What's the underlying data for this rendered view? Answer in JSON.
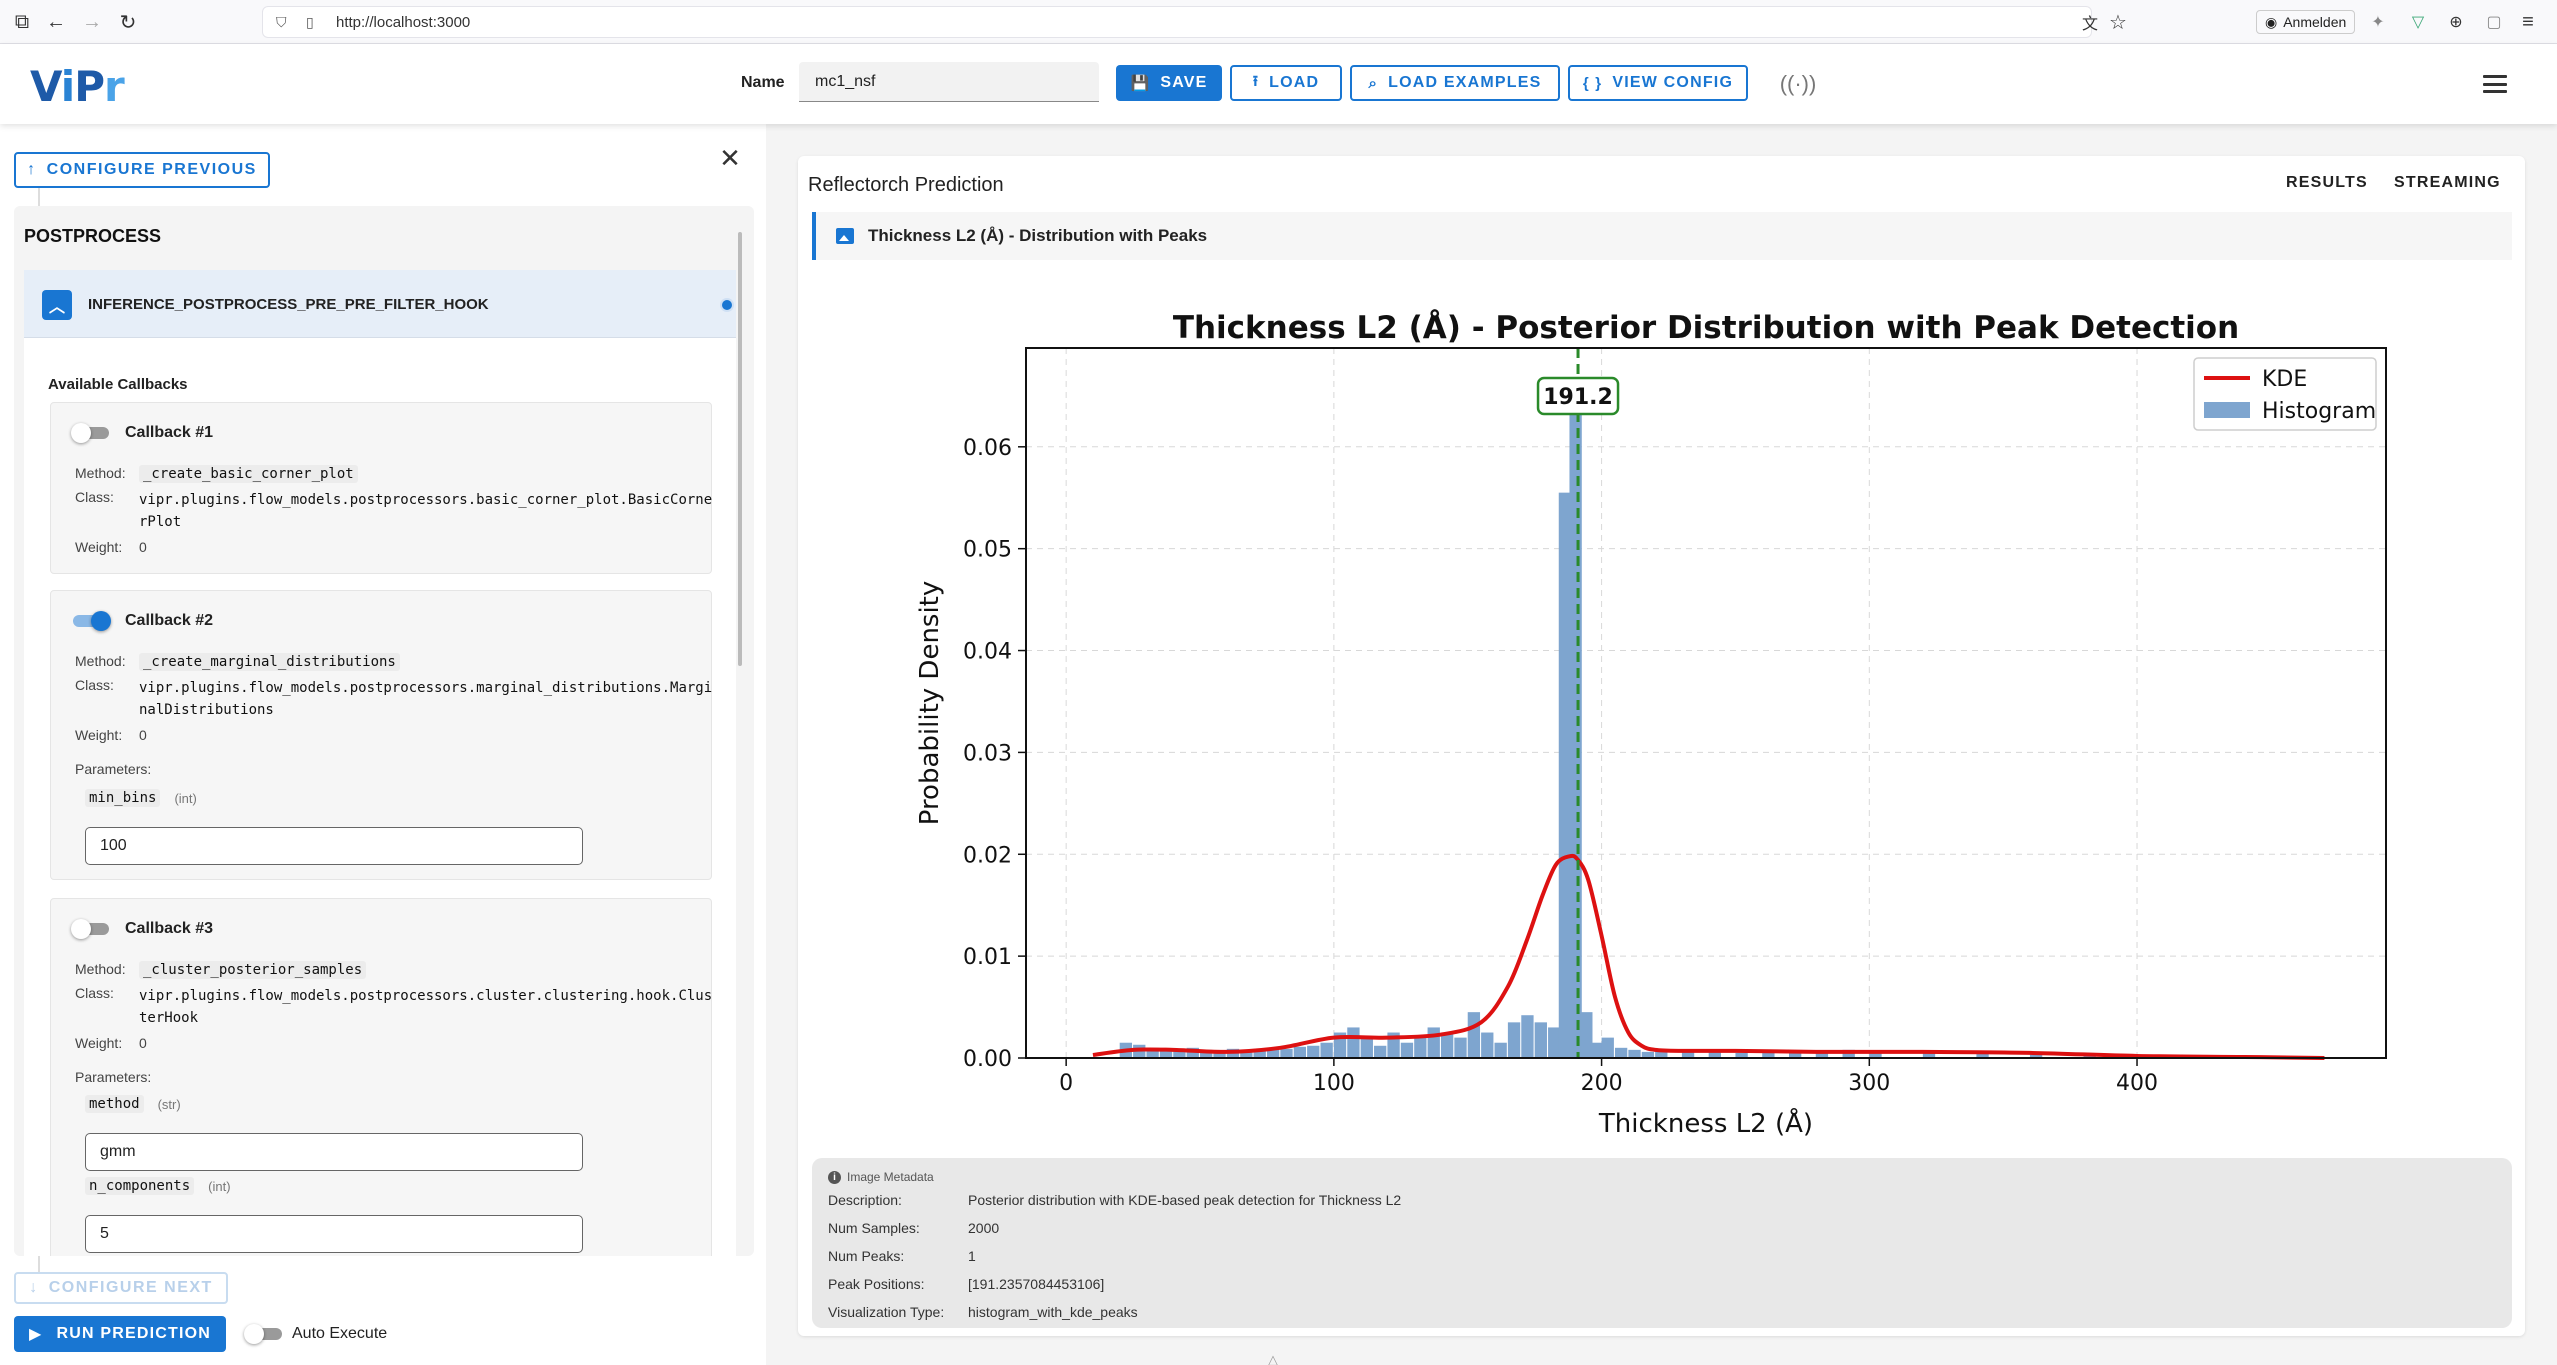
{
  "browser": {
    "url": "http://localhost:3000",
    "signin_label": "Anmelden"
  },
  "header": {
    "name_label": "Name",
    "name_value": "mc1_nsf",
    "buttons": {
      "save": "SAVE",
      "load": "LOAD",
      "load_examples": "LOAD EXAMPLES",
      "view_config": "VIEW CONFIG"
    }
  },
  "left": {
    "configure_previous": "CONFIGURE PREVIOUS",
    "section_title": "POSTPROCESS",
    "hook_name": "INFERENCE_POSTPROCESS_PRE_PRE_FILTER_HOOK",
    "available_callbacks": "Available Callbacks",
    "labels": {
      "method": "Method:",
      "class": "Class:",
      "weight": "Weight:",
      "parameters": "Parameters:"
    },
    "callbacks": [
      {
        "title": "Callback #1",
        "enabled": false,
        "method": "_create_basic_corner_plot",
        "class": "vipr.plugins.flow_models.postprocessors.basic_corner_plot.BasicCornerPlot",
        "weight": "0"
      },
      {
        "title": "Callback #2",
        "enabled": true,
        "method": "_create_marginal_distributions",
        "class": "vipr.plugins.flow_models.postprocessors.marginal_distributions.MarginalDistributions",
        "weight": "0",
        "params": [
          {
            "name": "min_bins",
            "type": "(int)",
            "value": "100"
          }
        ]
      },
      {
        "title": "Callback #3",
        "enabled": false,
        "method": "_cluster_posterior_samples",
        "class": "vipr.plugins.flow_models.postprocessors.cluster.clustering.hook.ClusterHook",
        "weight": "0",
        "params": [
          {
            "name": "method",
            "type": "(str)",
            "value": "gmm"
          },
          {
            "name": "n_components",
            "type": "(int)",
            "value": "5"
          }
        ]
      }
    ],
    "configure_next": "CONFIGURE NEXT",
    "run_prediction": "RUN PREDICTION",
    "auto_execute": "Auto Execute"
  },
  "right": {
    "title": "Reflectorch Prediction",
    "tabs": {
      "results": "RESULTS",
      "streaming": "STREAMING"
    },
    "image_title": "Thickness L2 (Å) - Distribution with Peaks",
    "metadata": {
      "header": "Image Metadata",
      "rows": [
        {
          "key": "Description:",
          "value": "Posterior distribution with KDE-based peak detection for Thickness L2"
        },
        {
          "key": "Num Samples:",
          "value": "2000"
        },
        {
          "key": "Num Peaks:",
          "value": "1"
        },
        {
          "key": "Peak Positions:",
          "value": "[191.2357084453106]"
        },
        {
          "key": "Visualization Type:",
          "value": "histogram_with_kde_peaks"
        }
      ]
    }
  },
  "chart_data": {
    "type": "bar",
    "title": "Thickness L2 (Å) - Posterior Distribution with Peak Detection",
    "xlabel": "Thickness L2 (Å)",
    "ylabel": "Probability Density",
    "xlim": [
      -15,
      493
    ],
    "ylim": [
      0,
      0.0697
    ],
    "x_ticks": [
      0,
      100,
      200,
      300,
      400
    ],
    "y_ticks": [
      0.0,
      0.01,
      0.02,
      0.03,
      0.04,
      0.05,
      0.06
    ],
    "y_tick_labels": [
      "0.00",
      "0.01",
      "0.02",
      "0.03",
      "0.04",
      "0.05",
      "0.06"
    ],
    "grid": true,
    "legend": "top-right",
    "series": [
      {
        "name": "KDE",
        "kind": "line",
        "color": "#dd1111",
        "x": [
          10,
          25,
          40,
          60,
          80,
          100,
          120,
          140,
          155,
          165,
          172,
          178,
          183,
          188,
          191,
          195,
          200,
          205,
          210,
          215,
          220,
          230,
          250,
          280,
          320,
          360,
          400,
          440,
          470
        ],
        "y": [
          0.0003,
          0.0008,
          0.0008,
          0.0006,
          0.001,
          0.002,
          0.002,
          0.0023,
          0.0035,
          0.007,
          0.0115,
          0.016,
          0.019,
          0.0198,
          0.0195,
          0.0175,
          0.012,
          0.006,
          0.0025,
          0.0012,
          0.0008,
          0.0007,
          0.0007,
          0.0006,
          0.0006,
          0.0005,
          0.0002,
          0.0001,
          0.0
        ]
      },
      {
        "name": "Histogram",
        "kind": "bar",
        "color": "#7ea5cf",
        "bin_width": 4.6,
        "bin_start": [
          20,
          25,
          30,
          35,
          40,
          45,
          50,
          55,
          60,
          65,
          70,
          75,
          80,
          85,
          90,
          95,
          100,
          105,
          110,
          115,
          120,
          125,
          130,
          135,
          140,
          145,
          150,
          155,
          160,
          165,
          170,
          175,
          180,
          184,
          188,
          192,
          196,
          200,
          205,
          210,
          215,
          220,
          230,
          240,
          250,
          260,
          270,
          280,
          290,
          300,
          320,
          340,
          360,
          380,
          400,
          430,
          460
        ],
        "values": [
          0.0015,
          0.0013,
          0.001,
          0.0008,
          0.0007,
          0.001,
          0.0008,
          0.0006,
          0.0009,
          0.0007,
          0.0008,
          0.001,
          0.0009,
          0.0011,
          0.0012,
          0.0015,
          0.0025,
          0.003,
          0.002,
          0.0012,
          0.0025,
          0.0015,
          0.002,
          0.003,
          0.0025,
          0.002,
          0.0045,
          0.0025,
          0.0015,
          0.0035,
          0.0042,
          0.0035,
          0.003,
          0.0555,
          0.065,
          0.0045,
          0.0015,
          0.002,
          0.001,
          0.0008,
          0.0006,
          0.0008,
          0.0007,
          0.0006,
          0.0005,
          0.0005,
          0.0006,
          0.0005,
          0.0008,
          0.0006,
          0.0005,
          0.0007,
          0.0004,
          0.0004,
          0.0003,
          0.0002,
          0.0001
        ]
      }
    ],
    "peak": {
      "x": 191.2,
      "label": "191.2",
      "color": "#2a8a2a"
    }
  }
}
